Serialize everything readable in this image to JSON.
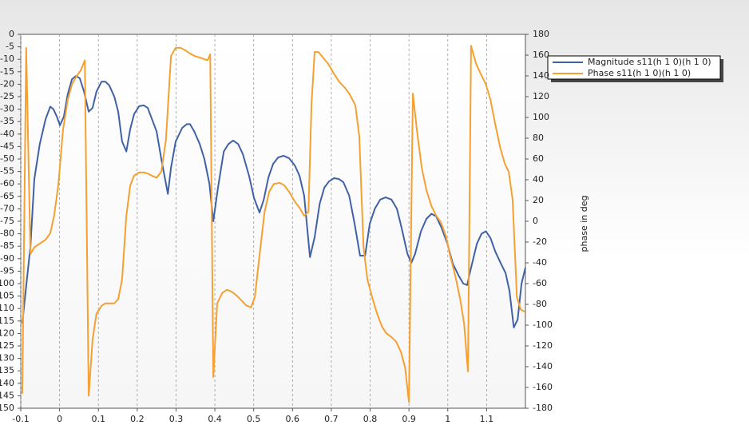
{
  "chart_data": {
    "type": "line",
    "y2label": "phase in deg",
    "xlim": [
      -0.1,
      1.2
    ],
    "xticks": [
      -0.1,
      0,
      0.1,
      0.2,
      0.3,
      0.4,
      0.5,
      0.6,
      0.7,
      0.8,
      0.9,
      1,
      1.1
    ],
    "ylim": [
      -150,
      0
    ],
    "yticks": [
      0,
      -5,
      -10,
      -15,
      -20,
      -25,
      -30,
      -35,
      -40,
      -45,
      -50,
      -55,
      -60,
      -65,
      -70,
      -75,
      -80,
      -85,
      -90,
      -95,
      -100,
      -105,
      -110,
      -115,
      -120,
      -125,
      -130,
      -135,
      -140,
      -145,
      -150
    ],
    "y2lim": [
      -180,
      180
    ],
    "y2ticks": [
      180,
      160,
      140,
      120,
      100,
      80,
      60,
      40,
      20,
      0,
      -20,
      -40,
      -60,
      -80,
      -100,
      -120,
      -140,
      -160,
      -180
    ],
    "grid": "x",
    "legend": "top-right",
    "series": [
      {
        "name": "Magnitude s11(h 1 0)(h 1 0)",
        "color": "#3f62a6",
        "x": [
          -0.096,
          -0.086,
          -0.075,
          -0.065,
          -0.051,
          -0.036,
          -0.024,
          -0.016,
          -0.007,
          0.001,
          0.011,
          0.021,
          0.032,
          0.042,
          0.052,
          0.063,
          0.075,
          0.085,
          0.095,
          0.108,
          0.118,
          0.128,
          0.141,
          0.151,
          0.161,
          0.172,
          0.182,
          0.192,
          0.205,
          0.217,
          0.227,
          0.237,
          0.25,
          0.262,
          0.279,
          0.287,
          0.299,
          0.316,
          0.328,
          0.336,
          0.347,
          0.361,
          0.373,
          0.386,
          0.396,
          0.408,
          0.423,
          0.435,
          0.447,
          0.46,
          0.472,
          0.488,
          0.501,
          0.515,
          0.526,
          0.538,
          0.55,
          0.563,
          0.577,
          0.591,
          0.606,
          0.618,
          0.63,
          0.645,
          0.657,
          0.67,
          0.682,
          0.694,
          0.707,
          0.719,
          0.731,
          0.746,
          0.76,
          0.774,
          0.787,
          0.799,
          0.812,
          0.826,
          0.84,
          0.855,
          0.869,
          0.881,
          0.896,
          0.906,
          0.916,
          0.931,
          0.945,
          0.958,
          0.97,
          0.984,
          0.999,
          1.013,
          1.028,
          1.04,
          1.05,
          1.06,
          1.075,
          1.087,
          1.098,
          1.11,
          1.122,
          1.137,
          1.149,
          1.159,
          1.17,
          1.18,
          1.19,
          1.2
        ],
        "values": [
          -116,
          -101,
          -85,
          -58,
          -44,
          -34,
          -29,
          -30,
          -33,
          -36.5,
          -33,
          -24,
          -18,
          -16.7,
          -17.6,
          -23,
          -31,
          -29.5,
          -23,
          -19,
          -19,
          -20.5,
          -25,
          -31,
          -43,
          -47,
          -38,
          -32,
          -28.8,
          -28.5,
          -29.5,
          -33.6,
          -39,
          -50,
          -64,
          -53.5,
          -43,
          -37.5,
          -36,
          -36,
          -39,
          -44,
          -50,
          -60,
          -75,
          -61.5,
          -47,
          -44,
          -42.6,
          -44,
          -48,
          -56.7,
          -65.7,
          -71.5,
          -66.3,
          -57.4,
          -52,
          -49.4,
          -48.7,
          -49.7,
          -52.6,
          -56.7,
          -64.7,
          -89.4,
          -81.4,
          -68,
          -61.5,
          -59,
          -57.7,
          -58,
          -59.3,
          -64.7,
          -76,
          -88.8,
          -88.8,
          -76,
          -70,
          -66.3,
          -65.4,
          -66.3,
          -70,
          -77.6,
          -88,
          -91.7,
          -88,
          -79,
          -74,
          -72,
          -73,
          -77.6,
          -84,
          -92,
          -96.8,
          -100,
          -100.6,
          -93.6,
          -84,
          -80,
          -79,
          -81.7,
          -87,
          -92,
          -95.8,
          -103,
          -117.6,
          -114.4,
          -100,
          -93.6
        ]
      },
      {
        "name": "Phase s11(h 1 0)(h 1 0)",
        "color": "#f5a030",
        "axis": "y2",
        "x": [
          -0.096,
          -0.086,
          -0.075,
          -0.065,
          -0.051,
          -0.036,
          -0.024,
          -0.014,
          -0.003,
          0.009,
          0.021,
          0.032,
          0.044,
          0.054,
          0.065,
          0.075,
          0.085,
          0.095,
          0.108,
          0.118,
          0.13,
          0.141,
          0.151,
          0.161,
          0.172,
          0.182,
          0.192,
          0.205,
          0.217,
          0.227,
          0.237,
          0.25,
          0.262,
          0.274,
          0.287,
          0.299,
          0.312,
          0.324,
          0.336,
          0.349,
          0.361,
          0.373,
          0.381,
          0.388,
          0.396,
          0.406,
          0.419,
          0.431,
          0.443,
          0.456,
          0.468,
          0.48,
          0.493,
          0.503,
          0.515,
          0.528,
          0.54,
          0.552,
          0.567,
          0.579,
          0.591,
          0.606,
          0.618,
          0.63,
          0.641,
          0.649,
          0.657,
          0.667,
          0.68,
          0.692,
          0.707,
          0.721,
          0.735,
          0.748,
          0.762,
          0.772,
          0.783,
          0.793,
          0.805,
          0.818,
          0.83,
          0.842,
          0.855,
          0.867,
          0.879,
          0.89,
          0.9,
          0.91,
          0.921,
          0.933,
          0.945,
          0.958,
          0.97,
          0.982,
          0.995,
          1.007,
          1.019,
          1.032,
          1.042,
          1.052,
          1.06,
          1.073,
          1.085,
          1.098,
          1.11,
          1.122,
          1.135,
          1.147,
          1.157,
          1.167,
          1.178,
          1.188,
          1.198
        ],
        "values": [
          -166,
          167,
          -31.5,
          -25,
          -21.5,
          -17.7,
          -11.5,
          5.4,
          36,
          88.5,
          117,
          132,
          140,
          145,
          155,
          -168,
          -114,
          -89,
          -81.5,
          -79,
          -79,
          -79,
          -75,
          -56,
          5.4,
          34.6,
          44,
          47,
          47,
          46,
          44,
          42,
          47.7,
          78.5,
          159,
          167,
          167,
          164.6,
          161.5,
          159,
          157.7,
          156,
          155,
          160.8,
          -150,
          -79,
          -69,
          -66,
          -67.7,
          -71.5,
          -76,
          -80.8,
          -83,
          -73,
          -33,
          9,
          28.5,
          36,
          37,
          34.6,
          28.5,
          19,
          13,
          5.4,
          9,
          113,
          163,
          163,
          157,
          151.5,
          142,
          134,
          128.5,
          122,
          111.5,
          82,
          -25,
          -56,
          -73,
          -89,
          -101,
          -108,
          -111.5,
          -116,
          -125.4,
          -140.8,
          -174,
          123,
          86,
          51.5,
          30,
          14.6,
          5.4,
          -0.8,
          -14,
          -34.6,
          -52,
          -75,
          -98.5,
          -144.6,
          169,
          151.5,
          142,
          132,
          117,
          94,
          71,
          55.4,
          47.7,
          20.8,
          -73,
          -85,
          -87
        ]
      }
    ]
  }
}
